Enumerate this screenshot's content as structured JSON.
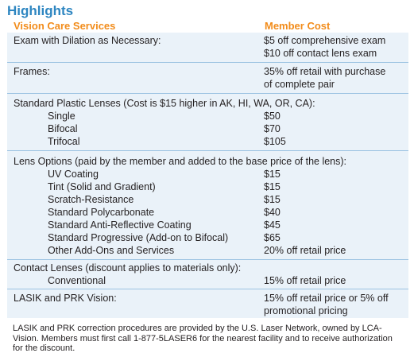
{
  "title": "Highlights",
  "headers": {
    "services": "Vision Care Services",
    "cost": "Member Cost"
  },
  "exam": {
    "label": "Exam with Dilation as Necessary:",
    "cost_1": "$5 off comprehensive exam",
    "cost_2": "$10 off contact lens exam"
  },
  "frames": {
    "label": "Frames:",
    "cost_1": "35% off retail with purchase",
    "cost_2": "of complete pair"
  },
  "lenses": {
    "label": "Standard Plastic Lenses (Cost is $15 higher in AK, HI, WA, OR, CA):",
    "items": [
      {
        "name": "Single",
        "cost": "$50"
      },
      {
        "name": "Bifocal",
        "cost": "$70"
      },
      {
        "name": "Trifocal",
        "cost": "$105"
      }
    ]
  },
  "options": {
    "label": "Lens Options (paid by the member and added to the base price of the lens):",
    "items": [
      {
        "name": "UV Coating",
        "cost": "$15"
      },
      {
        "name": "Tint (Solid and Gradient)",
        "cost": "$15"
      },
      {
        "name": "Scratch-Resistance",
        "cost": "$15"
      },
      {
        "name": "Standard Polycarbonate",
        "cost": "$40"
      },
      {
        "name": "Standard Anti-Reflective Coating",
        "cost": "$45"
      },
      {
        "name": "Standard Progressive (Add-on to Bifocal)",
        "cost": "$65"
      },
      {
        "name": "Other Add-Ons and Services",
        "cost": "20% off retail price"
      }
    ]
  },
  "contacts": {
    "label": "Contact Lenses (discount applies to materials only):",
    "item": {
      "name": "Conventional",
      "cost": "15% off retail price"
    }
  },
  "lasik": {
    "label": "LASIK and PRK Vision:",
    "cost_1": "15% off retail price or 5% off",
    "cost_2": "promotional pricing"
  },
  "footnote": "LASIK and PRK correction procedures are provided by the U.S. Laser Network, owned by LCA-Vision.  Members must first call 1-877-5LASER6 for the nearest facility and to receive authorization for the discount."
}
